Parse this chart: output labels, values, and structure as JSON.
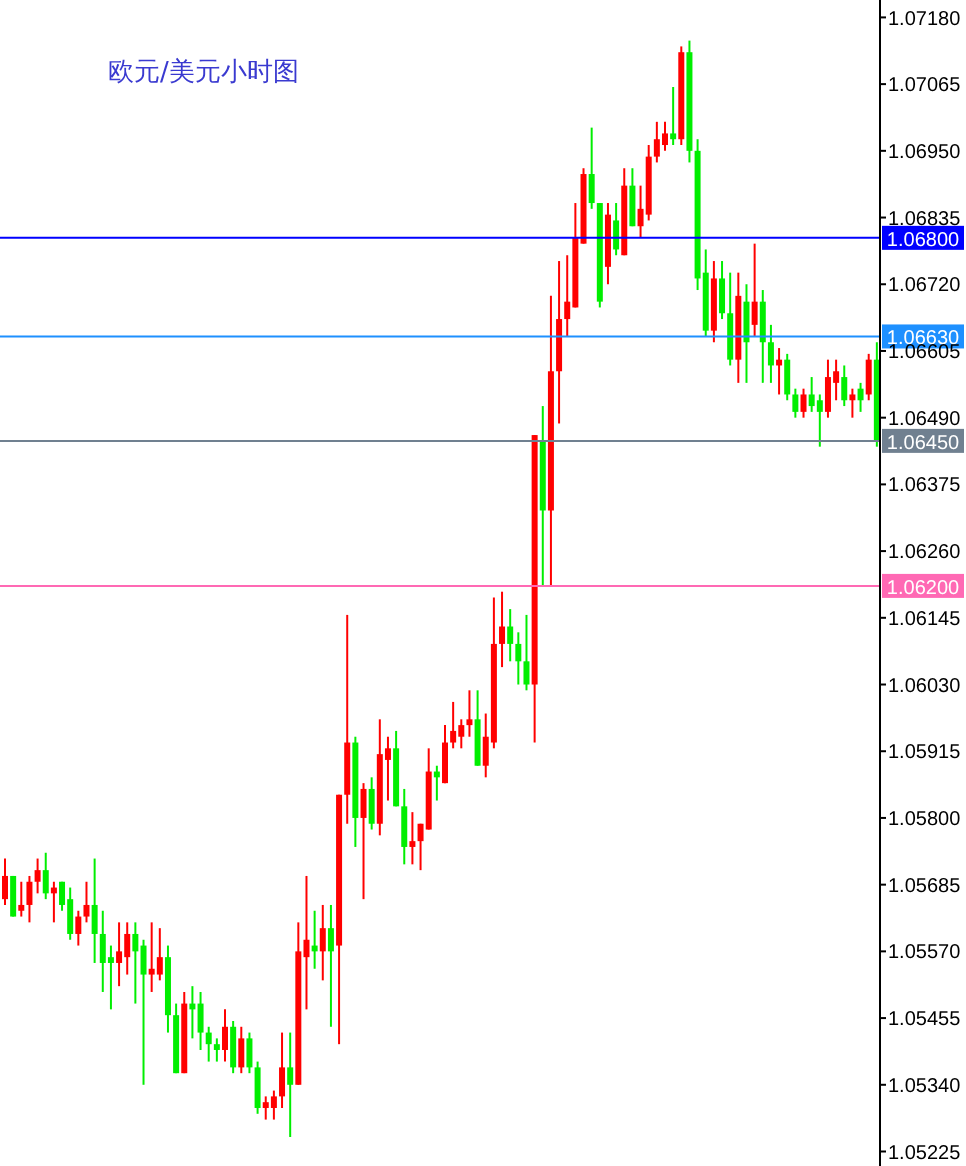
{
  "chart_data": {
    "type": "candlestick",
    "title": "欧元/美元小时图",
    "categories": [
      null,
      null,
      null,
      null,
      null,
      null,
      null,
      null,
      null,
      null,
      null,
      null,
      null,
      null,
      null,
      null,
      null,
      null,
      null,
      null,
      null,
      null,
      null,
      null,
      null,
      null,
      null,
      null,
      null,
      null,
      null,
      null,
      null,
      null,
      null,
      null,
      null,
      null,
      null,
      null,
      null,
      null,
      null,
      null,
      null,
      null,
      null,
      null,
      null,
      null,
      null,
      null,
      null,
      null,
      null,
      null,
      null,
      null,
      null,
      null,
      null,
      null,
      null,
      null,
      null,
      null,
      null,
      null,
      null,
      null,
      null,
      null,
      null,
      null,
      null,
      null,
      null,
      null,
      null,
      null,
      null,
      null,
      null,
      null,
      null,
      null,
      null,
      null,
      null,
      null,
      null,
      null,
      null,
      null,
      null,
      null,
      null,
      null,
      null,
      null,
      null,
      null,
      null,
      null,
      null,
      null,
      null,
      null
    ],
    "ohlc": [
      [
        1.0566,
        1.0573,
        1.0565,
        1.057
      ],
      [
        1.057,
        1.057,
        1.0563,
        1.0563
      ],
      [
        1.0564,
        1.0569,
        1.0563,
        1.0565
      ],
      [
        1.0565,
        1.057,
        1.0562,
        1.0569
      ],
      [
        1.0569,
        1.0573,
        1.0567,
        1.0571
      ],
      [
        1.0571,
        1.0574,
        1.0566,
        1.0567
      ],
      [
        1.0567,
        1.0569,
        1.0562,
        1.0568
      ],
      [
        1.0569,
        1.0569,
        1.0564,
        1.0565
      ],
      [
        1.0566,
        1.0568,
        1.0559,
        1.056
      ],
      [
        1.056,
        1.0564,
        1.0558,
        1.0563
      ],
      [
        1.0563,
        1.0569,
        1.0562,
        1.0565
      ],
      [
        1.0565,
        1.0573,
        1.0555,
        1.056
      ],
      [
        1.056,
        1.0564,
        1.055,
        1.0555
      ],
      [
        1.0556,
        1.0558,
        1.0547,
        1.0555
      ],
      [
        1.0555,
        1.0562,
        1.0551,
        1.0557
      ],
      [
        1.0556,
        1.0562,
        1.0553,
        1.056
      ],
      [
        1.056,
        1.0562,
        1.0548,
        1.0557
      ],
      [
        1.0558,
        1.0559,
        1.0534,
        1.0553
      ],
      [
        1.0553,
        1.0562,
        1.055,
        1.0554
      ],
      [
        1.0553,
        1.0561,
        1.0552,
        1.0556
      ],
      [
        1.0556,
        1.0558,
        1.0543,
        1.0546
      ],
      [
        1.0546,
        1.0548,
        1.0536,
        1.0536
      ],
      [
        1.0536,
        1.055,
        1.0536,
        1.0548
      ],
      [
        1.0548,
        1.0551,
        1.0542,
        1.0547
      ],
      [
        1.0548,
        1.055,
        1.054,
        1.0543
      ],
      [
        1.0543,
        1.0544,
        1.0538,
        1.0541
      ],
      [
        1.0541,
        1.0542,
        1.0538,
        1.054
      ],
      [
        1.054,
        1.0547,
        1.0538,
        1.0544
      ],
      [
        1.0544,
        1.0545,
        1.0536,
        1.0537
      ],
      [
        1.0537,
        1.0544,
        1.0536,
        1.0542
      ],
      [
        1.0542,
        1.0543,
        1.0536,
        1.0537
      ],
      [
        1.0537,
        1.0538,
        1.0529,
        1.053
      ],
      [
        1.053,
        1.0532,
        1.0528,
        1.0531
      ],
      [
        1.053,
        1.0533,
        1.0528,
        1.0532
      ],
      [
        1.0532,
        1.0543,
        1.053,
        1.0537
      ],
      [
        1.0537,
        1.0543,
        1.0525,
        1.0534
      ],
      [
        1.0534,
        1.0562,
        1.0534,
        1.0557
      ],
      [
        1.0556,
        1.057,
        1.0547,
        1.0559
      ],
      [
        1.0558,
        1.0564,
        1.0554,
        1.0557
      ],
      [
        1.0557,
        1.0565,
        1.0552,
        1.0561
      ],
      [
        1.0561,
        1.0565,
        1.0544,
        1.0557
      ],
      [
        1.0558,
        1.0584,
        1.0541,
        1.0584
      ],
      [
        1.0584,
        1.0615,
        1.0579,
        1.0593
      ],
      [
        1.0593,
        1.0594,
        1.0575,
        1.058
      ],
      [
        1.058,
        1.0586,
        1.0566,
        1.0585
      ],
      [
        1.0585,
        1.0587,
        1.0578,
        1.0579
      ],
      [
        1.0579,
        1.0597,
        1.0577,
        1.0591
      ],
      [
        1.059,
        1.0594,
        1.0583,
        1.0592
      ],
      [
        1.0592,
        1.0595,
        1.0582,
        1.0582
      ],
      [
        1.0582,
        1.0585,
        1.0572,
        1.0575
      ],
      [
        1.0575,
        1.0581,
        1.0572,
        1.0576
      ],
      [
        1.0576,
        1.0579,
        1.0571,
        1.0579
      ],
      [
        1.0578,
        1.0592,
        1.0578,
        1.0588
      ],
      [
        1.0588,
        1.0589,
        1.0583,
        1.0587
      ],
      [
        1.0586,
        1.0596,
        1.0586,
        1.0593
      ],
      [
        1.0593,
        1.06,
        1.0592,
        1.0595
      ],
      [
        1.0594,
        1.0597,
        1.0592,
        1.0596
      ],
      [
        1.0596,
        1.0602,
        1.0594,
        1.0597
      ],
      [
        1.0597,
        1.0602,
        1.0589,
        1.0589
      ],
      [
        1.0589,
        1.0598,
        1.0587,
        1.0594
      ],
      [
        1.0593,
        1.0618,
        1.0592,
        1.061
      ],
      [
        1.061,
        1.0619,
        1.0606,
        1.0613
      ],
      [
        1.0613,
        1.0616,
        1.0607,
        1.061
      ],
      [
        1.061,
        1.0612,
        1.0603,
        1.0607
      ],
      [
        1.0607,
        1.0615,
        1.0602,
        1.0603
      ],
      [
        1.0603,
        1.0646,
        1.0593,
        1.0646
      ],
      [
        1.0645,
        1.0651,
        1.062,
        1.0633
      ],
      [
        1.0633,
        1.067,
        1.062,
        1.0657
      ],
      [
        1.0657,
        1.0676,
        1.0648,
        1.0666
      ],
      [
        1.0666,
        1.0677,
        1.0663,
        1.0669
      ],
      [
        1.0668,
        1.0686,
        1.0668,
        1.068
      ],
      [
        1.0679,
        1.0692,
        1.0679,
        1.0691
      ],
      [
        1.0691,
        1.0699,
        1.0685,
        1.0686
      ],
      [
        1.0686,
        1.0686,
        1.0668,
        1.0669
      ],
      [
        1.0675,
        1.0686,
        1.0672,
        1.0684
      ],
      [
        1.0683,
        1.0686,
        1.0677,
        1.0678
      ],
      [
        1.0677,
        1.0692,
        1.0677,
        1.0689
      ],
      [
        1.0689,
        1.0692,
        1.0682,
        1.0682
      ],
      [
        1.0682,
        1.0689,
        1.068,
        1.0685
      ],
      [
        1.0684,
        1.0696,
        1.0683,
        1.0694
      ],
      [
        1.0694,
        1.07,
        1.0693,
        1.0697
      ],
      [
        1.0696,
        1.07,
        1.0695,
        1.0698
      ],
      [
        1.0698,
        1.0706,
        1.0696,
        1.0697
      ],
      [
        1.0697,
        1.0713,
        1.0696,
        1.0712
      ],
      [
        1.0712,
        1.0714,
        1.0693,
        1.0695
      ],
      [
        1.0695,
        1.0697,
        1.0671,
        1.0673
      ],
      [
        1.0674,
        1.0678,
        1.0663,
        1.0664
      ],
      [
        1.0664,
        1.0676,
        1.0662,
        1.0673
      ],
      [
        1.0673,
        1.0676,
        1.0666,
        1.0667
      ],
      [
        1.0667,
        1.0674,
        1.0658,
        1.0659
      ],
      [
        1.0659,
        1.0674,
        1.0655,
        1.067
      ],
      [
        1.0669,
        1.0672,
        1.0655,
        1.0662
      ],
      [
        1.0665,
        1.0679,
        1.0663,
        1.0669
      ],
      [
        1.0669,
        1.0671,
        1.0655,
        1.0662
      ],
      [
        1.0662,
        1.0665,
        1.0655,
        1.0658
      ],
      [
        1.0658,
        1.0661,
        1.0653,
        1.0659
      ],
      [
        1.0659,
        1.066,
        1.0652,
        1.0653
      ],
      [
        1.0653,
        1.0654,
        1.0649,
        1.065
      ],
      [
        1.065,
        1.0654,
        1.0649,
        1.0653
      ],
      [
        1.0653,
        1.0656,
        1.065,
        1.0651
      ],
      [
        1.0652,
        1.0653,
        1.0644,
        1.065
      ],
      [
        1.065,
        1.0659,
        1.0649,
        1.0656
      ],
      [
        1.0655,
        1.0659,
        1.0652,
        1.0657
      ],
      [
        1.0656,
        1.0658,
        1.0651,
        1.0652
      ],
      [
        1.0652,
        1.0654,
        1.0649,
        1.0653
      ],
      [
        1.0654,
        1.0655,
        1.065,
        1.0652
      ],
      [
        1.0653,
        1.066,
        1.0652,
        1.0659
      ],
      [
        1.0659,
        1.0662,
        1.0644,
        1.0645
      ]
    ],
    "colors": [
      "#ff0000",
      "#00ee00",
      "#ff0000",
      "#ff0000",
      "#ff0000",
      "#00ee00",
      "#ff0000",
      "#00ee00",
      "#00ee00",
      "#ff0000",
      "#ff0000",
      "#00ee00",
      "#00ee00",
      "#00ee00",
      "#ff0000",
      "#ff0000",
      "#00ee00",
      "#00ee00",
      "#ff0000",
      "#ff0000",
      "#00ee00",
      "#00ee00",
      "#ff0000",
      "#00ee00",
      "#00ee00",
      "#00ee00",
      "#00ee00",
      "#ff0000",
      "#00ee00",
      "#ff0000",
      "#00ee00",
      "#00ee00",
      "#ff0000",
      "#ff0000",
      "#ff0000",
      "#00ee00",
      "#ff0000",
      "#ff0000",
      "#00ee00",
      "#ff0000",
      "#00ee00",
      "#ff0000",
      "#ff0000",
      "#00ee00",
      "#ff0000",
      "#00ee00",
      "#ff0000",
      "#ff0000",
      "#00ee00",
      "#00ee00",
      "#ff0000",
      "#ff0000",
      "#ff0000",
      "#00ee00",
      "#ff0000",
      "#ff0000",
      "#ff0000",
      "#ff0000",
      "#00ee00",
      "#ff0000",
      "#ff0000",
      "#ff0000",
      "#00ee00",
      "#00ee00",
      "#00ee00",
      "#ff0000",
      "#00ee00",
      "#ff0000",
      "#ff0000",
      "#ff0000",
      "#ff0000",
      "#ff0000",
      "#00ee00",
      "#00ee00",
      "#ff0000",
      "#00ee00",
      "#ff0000",
      "#00ee00",
      "#ff0000",
      "#ff0000",
      "#ff0000",
      "#ff0000",
      "#00ee00",
      "#ff0000",
      "#00ee00",
      "#00ee00",
      "#00ee00",
      "#ff0000",
      "#00ee00",
      "#00ee00",
      "#ff0000",
      "#00ee00",
      "#ff0000",
      "#00ee00",
      "#00ee00",
      "#ff0000",
      "#00ee00",
      "#00ee00",
      "#ff0000",
      "#00ee00",
      "#00ee00",
      "#ff0000",
      "#ff0000",
      "#00ee00",
      "#ff0000",
      "#00ee00",
      "#ff0000",
      "#00ee00"
    ],
    "ylim": [
      1.052,
      1.0721
    ],
    "yticks": [
      {
        "value": 1.0718,
        "label": "1.07180"
      },
      1.07065,
      {
        "value": 1.0695,
        "label": "1.06950"
      },
      1.06835,
      {
        "value": 1.0672,
        "label": "1.06720"
      },
      1.06605,
      {
        "value": 1.0649,
        "label": "1.06490"
      },
      1.06375,
      {
        "value": 1.0626,
        "label": "1.06260"
      },
      1.06145,
      {
        "value": 1.0603,
        "label": "1.06030"
      },
      1.05915,
      {
        "value": 1.058,
        "label": "1.05800"
      },
      1.05685,
      {
        "value": 1.0557,
        "label": "1.05570"
      },
      1.05455,
      {
        "value": 1.0534,
        "label": "1.05340"
      },
      1.05225
    ],
    "ref_lines": [
      {
        "axis": "y",
        "value": 1.068,
        "label": "1.06800",
        "color": "#0000ff"
      },
      {
        "axis": "y",
        "value": 1.0663,
        "label": "1.06630",
        "color": "#1e90ff"
      },
      {
        "axis": "y",
        "value": 1.0645,
        "label": "1.06450",
        "color": "#708090"
      },
      {
        "axis": "y",
        "value": 1.062,
        "label": "1.06200",
        "color": "#ff69b4"
      }
    ],
    "tick_labels": "y",
    "grid": false,
    "legend": false
  }
}
